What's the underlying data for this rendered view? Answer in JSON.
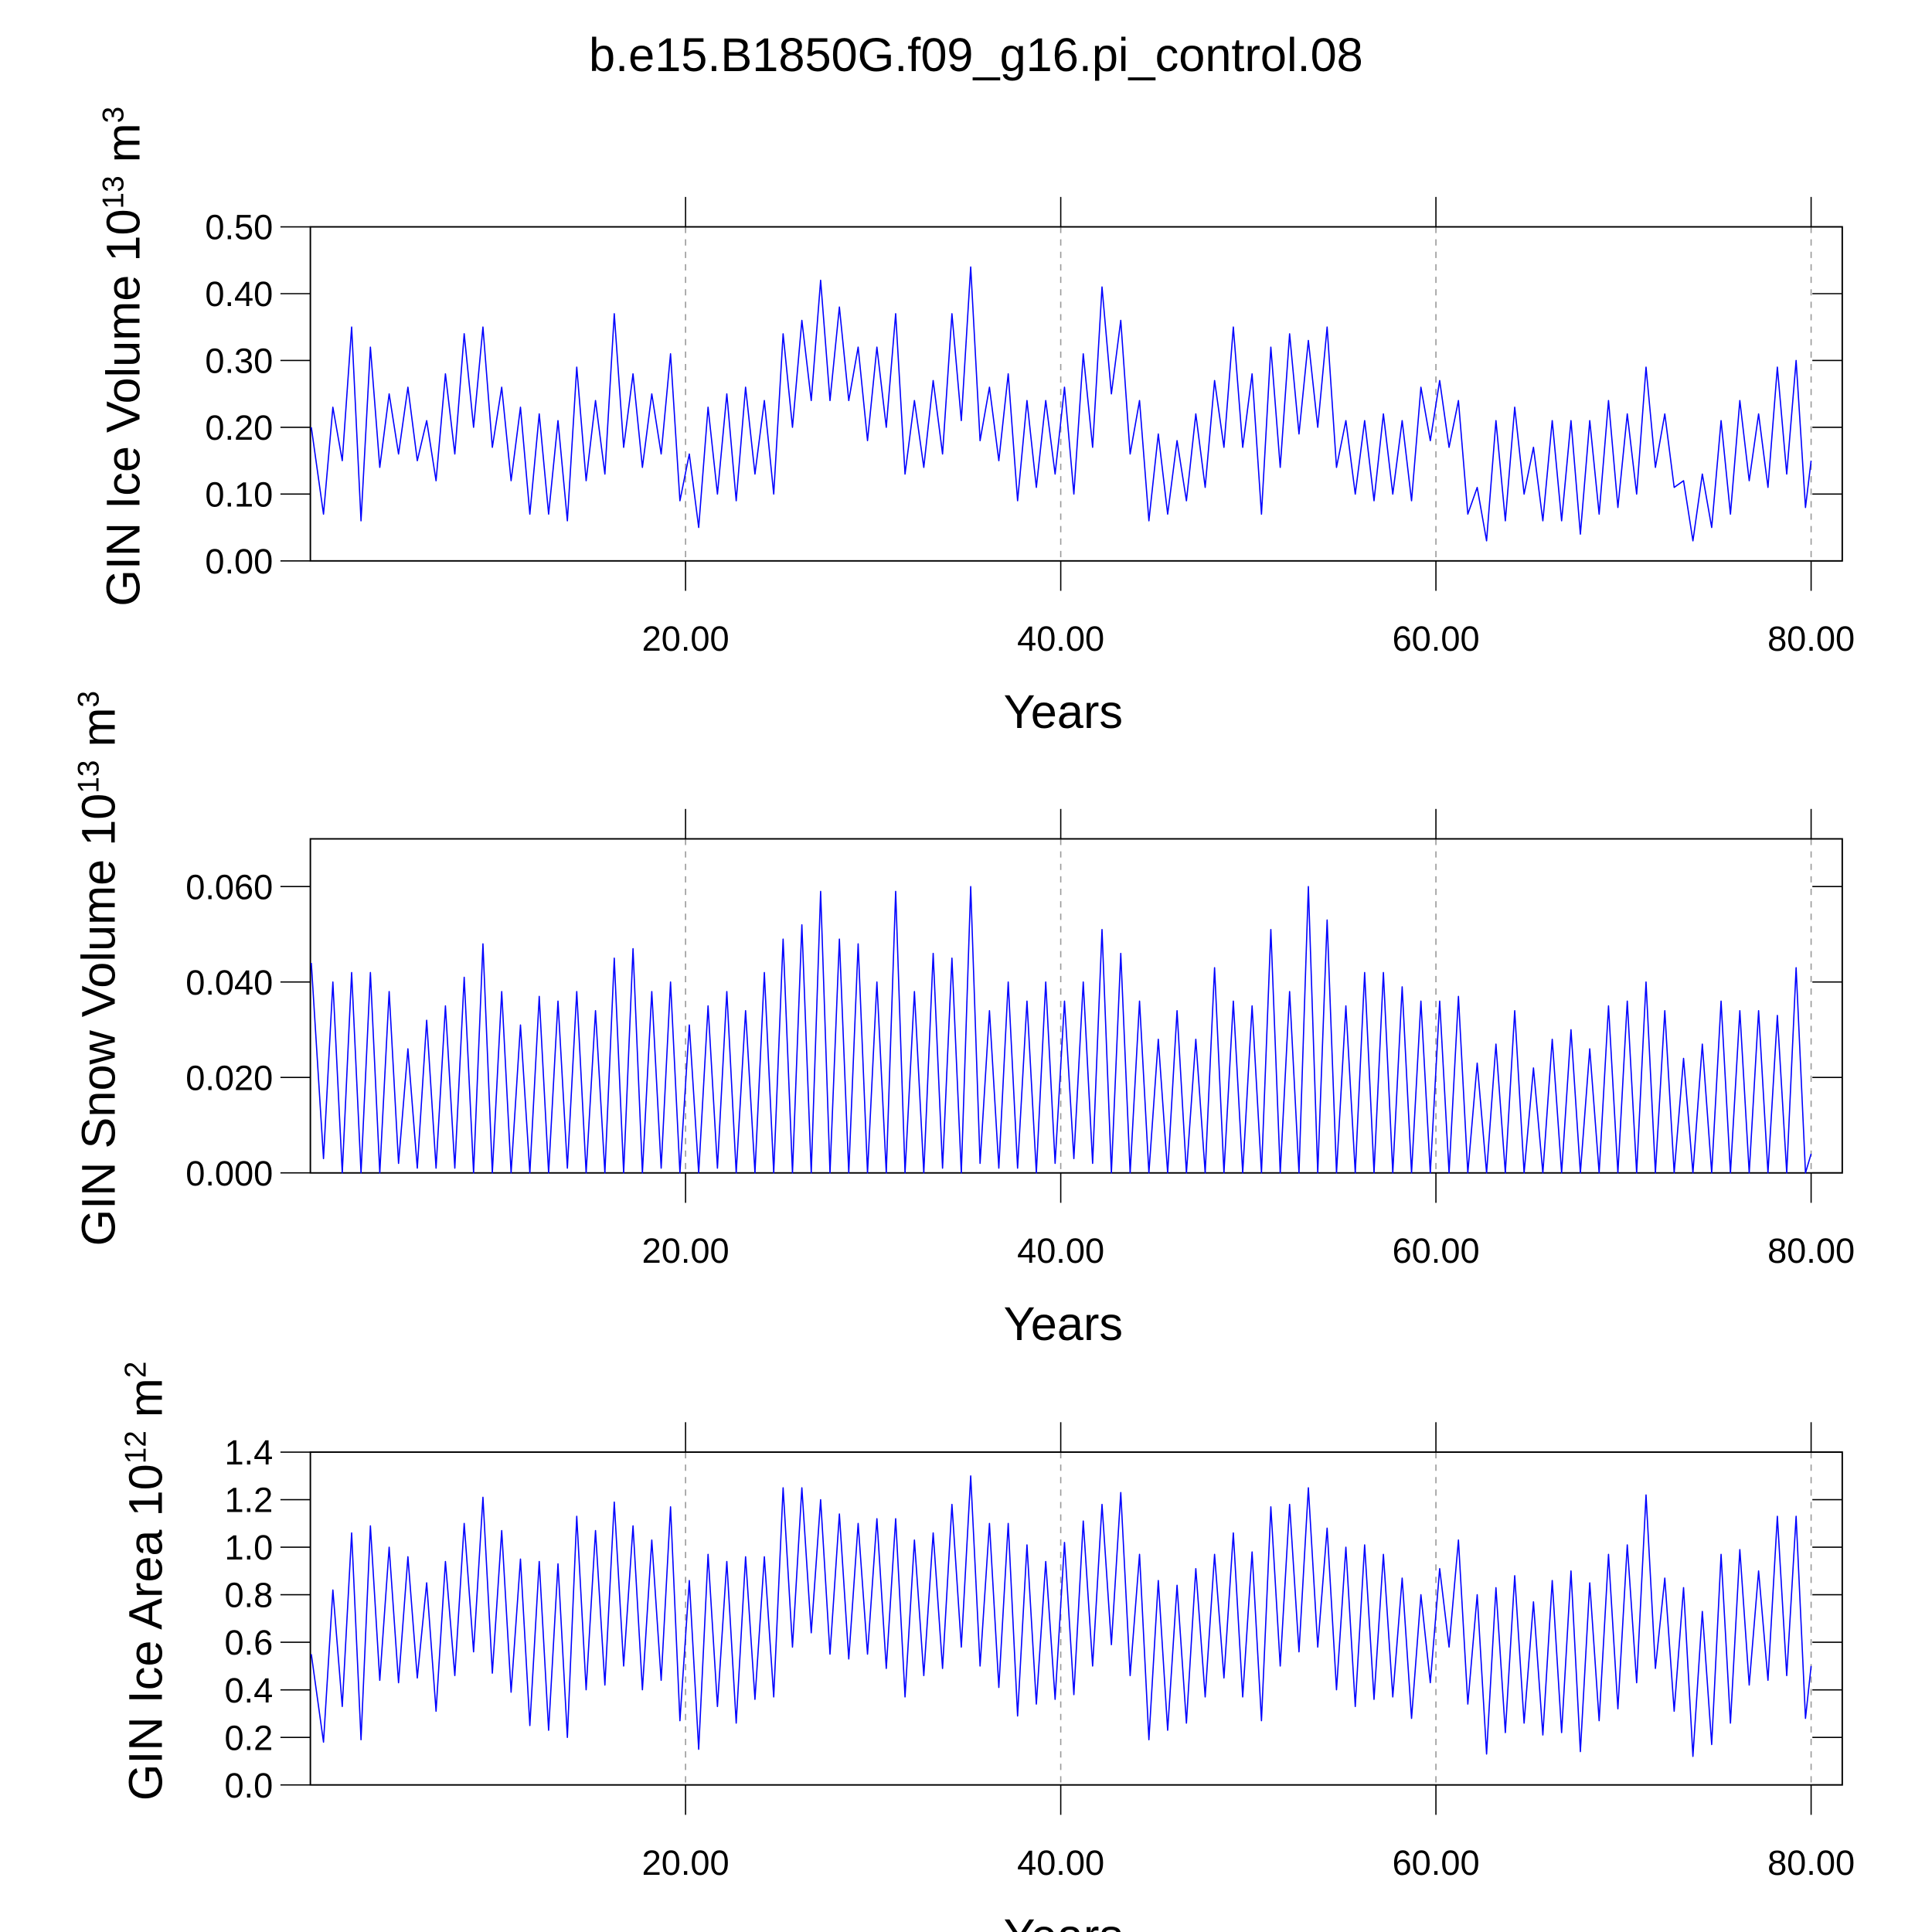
{
  "chart_data": [
    {
      "type": "line",
      "title": "b.e15.B1850G.f09_g16.pi_control.08",
      "xlabel": "Years",
      "ylabel": [
        {
          "text": "GIN Ice Volume 10"
        },
        {
          "text": "13",
          "sup": true
        },
        {
          "text": " m"
        },
        {
          "text": "3",
          "sup": true
        }
      ],
      "xlim": [
        0,
        81.66
      ],
      "xticks": [
        {
          "value": 20,
          "label": "20.00"
        },
        {
          "value": 40,
          "label": "40.00"
        },
        {
          "value": 60,
          "label": "60.00"
        },
        {
          "value": 80,
          "label": "80.00"
        }
      ],
      "ylim": [
        0,
        0.5
      ],
      "yticks": [
        {
          "value": 0,
          "label": "0.00"
        },
        {
          "value": 0.1,
          "label": "0.10"
        },
        {
          "value": 0.2,
          "label": "0.20"
        },
        {
          "value": 0.3,
          "label": "0.30"
        },
        {
          "value": 0.4,
          "label": "0.40"
        },
        {
          "value": 0.5,
          "label": "0.50"
        }
      ],
      "grid": "x",
      "x": [
        0.05,
        0.7,
        1.2,
        1.7,
        2.2,
        2.7,
        3.2,
        3.7,
        4.2,
        4.7,
        5.2,
        5.7,
        6.2,
        6.7,
        7.2,
        7.7,
        8.2,
        8.7,
        9.2,
        9.7,
        10.2,
        10.7,
        11.2,
        11.7,
        12.2,
        12.7,
        13.2,
        13.7,
        14.2,
        14.7,
        15.2,
        15.7,
        16.2,
        16.7,
        17.2,
        17.7,
        18.2,
        18.7,
        19.2,
        19.7,
        20.2,
        20.7,
        21.2,
        21.7,
        22.2,
        22.7,
        23.2,
        23.7,
        24.2,
        24.7,
        25.2,
        25.7,
        26.2,
        26.7,
        27.2,
        27.7,
        28.2,
        28.7,
        29.2,
        29.7,
        30.2,
        30.7,
        31.2,
        31.7,
        32.2,
        32.7,
        33.2,
        33.7,
        34.2,
        34.7,
        35.2,
        35.7,
        36.2,
        36.7,
        37.2,
        37.7,
        38.2,
        38.7,
        39.2,
        39.7,
        40.2,
        40.7,
        41.2,
        41.7,
        42.2,
        42.7,
        43.2,
        43.7,
        44.2,
        44.7,
        45.2,
        45.7,
        46.2,
        46.7,
        47.2,
        47.7,
        48.2,
        48.7,
        49.2,
        49.7,
        50.2,
        50.7,
        51.2,
        51.7,
        52.2,
        52.7,
        53.2,
        53.7,
        54.2,
        54.7,
        55.2,
        55.7,
        56.2,
        56.7,
        57.2,
        57.7,
        58.2,
        58.7,
        59.2,
        59.7,
        60.2,
        60.7,
        61.2,
        61.7,
        62.2,
        62.7,
        63.2,
        63.7,
        64.2,
        64.7,
        65.2,
        65.7,
        66.2,
        66.7,
        67.2,
        67.7,
        68.2,
        68.7,
        69.2,
        69.7,
        70.2,
        70.7,
        71.2,
        71.7,
        72.2,
        72.7,
        73.2,
        73.7,
        74.2,
        74.7,
        75.2,
        75.7,
        76.2,
        76.7,
        77.2,
        77.7,
        78.2,
        78.7,
        79.2,
        79.7,
        80.0
      ],
      "series": [
        {
          "color": "#0000ff",
          "values": [
            0.2,
            0.07,
            0.23,
            0.15,
            0.35,
            0.06,
            0.32,
            0.14,
            0.25,
            0.16,
            0.26,
            0.15,
            0.21,
            0.12,
            0.28,
            0.16,
            0.34,
            0.2,
            0.35,
            0.17,
            0.26,
            0.12,
            0.23,
            0.07,
            0.22,
            0.07,
            0.21,
            0.06,
            0.29,
            0.12,
            0.24,
            0.13,
            0.37,
            0.17,
            0.28,
            0.14,
            0.25,
            0.16,
            0.31,
            0.09,
            0.16,
            0.05,
            0.23,
            0.1,
            0.25,
            0.09,
            0.26,
            0.13,
            0.24,
            0.1,
            0.34,
            0.2,
            0.36,
            0.24,
            0.42,
            0.24,
            0.38,
            0.24,
            0.32,
            0.18,
            0.32,
            0.2,
            0.37,
            0.13,
            0.24,
            0.14,
            0.27,
            0.16,
            0.37,
            0.21,
            0.44,
            0.18,
            0.26,
            0.15,
            0.28,
            0.09,
            0.24,
            0.11,
            0.24,
            0.13,
            0.26,
            0.1,
            0.31,
            0.17,
            0.41,
            0.25,
            0.36,
            0.16,
            0.24,
            0.06,
            0.19,
            0.07,
            0.18,
            0.09,
            0.22,
            0.11,
            0.27,
            0.17,
            0.35,
            0.17,
            0.28,
            0.07,
            0.32,
            0.14,
            0.34,
            0.19,
            0.33,
            0.2,
            0.35,
            0.14,
            0.21,
            0.1,
            0.21,
            0.09,
            0.22,
            0.1,
            0.21,
            0.09,
            0.26,
            0.18,
            0.27,
            0.17,
            0.24,
            0.07,
            0.11,
            0.03,
            0.21,
            0.06,
            0.23,
            0.1,
            0.17,
            0.06,
            0.21,
            0.06,
            0.21,
            0.04,
            0.21,
            0.07,
            0.24,
            0.08,
            0.22,
            0.1,
            0.29,
            0.14,
            0.22,
            0.11,
            0.12,
            0.03,
            0.13,
            0.05,
            0.21,
            0.07,
            0.24,
            0.12,
            0.22,
            0.11,
            0.29,
            0.13,
            0.3,
            0.08,
            0.15
          ]
        }
      ]
    },
    {
      "type": "line",
      "xlabel": "Years",
      "ylabel": [
        {
          "text": "GIN Snow Volume 10"
        },
        {
          "text": "13",
          "sup": true
        },
        {
          "text": " m"
        },
        {
          "text": "3",
          "sup": true
        }
      ],
      "xlim": [
        0,
        81.66
      ],
      "xticks": [
        {
          "value": 20,
          "label": "20.00"
        },
        {
          "value": 40,
          "label": "40.00"
        },
        {
          "value": 60,
          "label": "60.00"
        },
        {
          "value": 80,
          "label": "80.00"
        }
      ],
      "ylim": [
        0,
        0.07
      ],
      "yticks": [
        {
          "value": 0,
          "label": "0.000"
        },
        {
          "value": 0.02,
          "label": "0.020"
        },
        {
          "value": 0.04,
          "label": "0.040"
        },
        {
          "value": 0.06,
          "label": "0.060"
        }
      ],
      "grid": "x",
      "x": [
        0.05,
        0.7,
        1.2,
        1.7,
        2.2,
        2.7,
        3.2,
        3.7,
        4.2,
        4.7,
        5.2,
        5.7,
        6.2,
        6.7,
        7.2,
        7.7,
        8.2,
        8.7,
        9.2,
        9.7,
        10.2,
        10.7,
        11.2,
        11.7,
        12.2,
        12.7,
        13.2,
        13.7,
        14.2,
        14.7,
        15.2,
        15.7,
        16.2,
        16.7,
        17.2,
        17.7,
        18.2,
        18.7,
        19.2,
        19.7,
        20.2,
        20.7,
        21.2,
        21.7,
        22.2,
        22.7,
        23.2,
        23.7,
        24.2,
        24.7,
        25.2,
        25.7,
        26.2,
        26.7,
        27.2,
        27.7,
        28.2,
        28.7,
        29.2,
        29.7,
        30.2,
        30.7,
        31.2,
        31.7,
        32.2,
        32.7,
        33.2,
        33.7,
        34.2,
        34.7,
        35.2,
        35.7,
        36.2,
        36.7,
        37.2,
        37.7,
        38.2,
        38.7,
        39.2,
        39.7,
        40.2,
        40.7,
        41.2,
        41.7,
        42.2,
        42.7,
        43.2,
        43.7,
        44.2,
        44.7,
        45.2,
        45.7,
        46.2,
        46.7,
        47.2,
        47.7,
        48.2,
        48.7,
        49.2,
        49.7,
        50.2,
        50.7,
        51.2,
        51.7,
        52.2,
        52.7,
        53.2,
        53.7,
        54.2,
        54.7,
        55.2,
        55.7,
        56.2,
        56.7,
        57.2,
        57.7,
        58.2,
        58.7,
        59.2,
        59.7,
        60.2,
        60.7,
        61.2,
        61.7,
        62.2,
        62.7,
        63.2,
        63.7,
        64.2,
        64.7,
        65.2,
        65.7,
        66.2,
        66.7,
        67.2,
        67.7,
        68.2,
        68.7,
        69.2,
        69.7,
        70.2,
        70.7,
        71.2,
        71.7,
        72.2,
        72.7,
        73.2,
        73.7,
        74.2,
        74.7,
        75.2,
        75.7,
        76.2,
        76.7,
        77.2,
        77.7,
        78.2,
        78.7,
        79.2,
        79.7,
        80.0
      ],
      "series": [
        {
          "color": "#0000ff",
          "values": [
            0.044,
            0.003,
            0.04,
            0.0,
            0.042,
            0.0,
            0.042,
            0.0,
            0.038,
            0.002,
            0.026,
            0.001,
            0.032,
            0.001,
            0.035,
            0.001,
            0.041,
            0.0,
            0.048,
            0.0,
            0.038,
            0.0,
            0.031,
            0.0,
            0.037,
            0.0,
            0.036,
            0.001,
            0.038,
            0.0,
            0.034,
            0.0,
            0.045,
            0.0,
            0.047,
            0.0,
            0.038,
            0.001,
            0.04,
            0.0,
            0.031,
            0.0,
            0.035,
            0.001,
            0.038,
            0.0,
            0.034,
            0.0,
            0.042,
            0.0,
            0.049,
            0.0,
            0.052,
            0.0,
            0.059,
            0.0,
            0.049,
            0.0,
            0.048,
            0.0,
            0.04,
            0.0,
            0.059,
            0.0,
            0.038,
            0.0,
            0.046,
            0.001,
            0.045,
            0.0,
            0.06,
            0.002,
            0.034,
            0.001,
            0.04,
            0.001,
            0.036,
            0.0,
            0.04,
            0.002,
            0.036,
            0.003,
            0.04,
            0.002,
            0.051,
            0.0,
            0.046,
            0.0,
            0.036,
            0.0,
            0.028,
            0.0,
            0.034,
            0.0,
            0.028,
            0.0,
            0.043,
            0.0,
            0.036,
            0.0,
            0.035,
            0.0,
            0.051,
            0.0,
            0.038,
            0.0,
            0.06,
            0.0,
            0.053,
            0.0,
            0.035,
            0.0,
            0.042,
            0.0,
            0.042,
            0.0,
            0.039,
            0.0,
            0.036,
            0.0,
            0.036,
            0.0,
            0.037,
            0.0,
            0.023,
            0.0,
            0.027,
            0.0,
            0.034,
            0.0,
            0.022,
            0.0,
            0.028,
            0.0,
            0.03,
            0.0,
            0.026,
            0.0,
            0.035,
            0.0,
            0.036,
            0.0,
            0.04,
            0.0,
            0.034,
            0.0,
            0.024,
            0.0,
            0.027,
            0.0,
            0.036,
            0.0,
            0.034,
            0.0,
            0.034,
            0.0,
            0.033,
            0.0,
            0.043,
            0.0,
            0.004
          ]
        }
      ]
    },
    {
      "type": "line",
      "xlabel": "Years",
      "ylabel": [
        {
          "text": "GIN Ice Area 10"
        },
        {
          "text": "12",
          "sup": true
        },
        {
          "text": " m"
        },
        {
          "text": "2",
          "sup": true
        }
      ],
      "xlim": [
        0,
        81.66
      ],
      "xticks": [
        {
          "value": 20,
          "label": "20.00"
        },
        {
          "value": 40,
          "label": "40.00"
        },
        {
          "value": 60,
          "label": "60.00"
        },
        {
          "value": 80,
          "label": "80.00"
        }
      ],
      "ylim": [
        0,
        1.4
      ],
      "yticks": [
        {
          "value": 0,
          "label": "0.0"
        },
        0.2,
        0.4,
        0.6,
        0.8,
        {
          "value": 1,
          "label": "1.0"
        },
        1.2,
        1.4
      ],
      "grid": "x",
      "x": [
        0.05,
        0.7,
        1.2,
        1.7,
        2.2,
        2.7,
        3.2,
        3.7,
        4.2,
        4.7,
        5.2,
        5.7,
        6.2,
        6.7,
        7.2,
        7.7,
        8.2,
        8.7,
        9.2,
        9.7,
        10.2,
        10.7,
        11.2,
        11.7,
        12.2,
        12.7,
        13.2,
        13.7,
        14.2,
        14.7,
        15.2,
        15.7,
        16.2,
        16.7,
        17.2,
        17.7,
        18.2,
        18.7,
        19.2,
        19.7,
        20.2,
        20.7,
        21.2,
        21.7,
        22.2,
        22.7,
        23.2,
        23.7,
        24.2,
        24.7,
        25.2,
        25.7,
        26.2,
        26.7,
        27.2,
        27.7,
        28.2,
        28.7,
        29.2,
        29.7,
        30.2,
        30.7,
        31.2,
        31.7,
        32.2,
        32.7,
        33.2,
        33.7,
        34.2,
        34.7,
        35.2,
        35.7,
        36.2,
        36.7,
        37.2,
        37.7,
        38.2,
        38.7,
        39.2,
        39.7,
        40.2,
        40.7,
        41.2,
        41.7,
        42.2,
        42.7,
        43.2,
        43.7,
        44.2,
        44.7,
        45.2,
        45.7,
        46.2,
        46.7,
        47.2,
        47.7,
        48.2,
        48.7,
        49.2,
        49.7,
        50.2,
        50.7,
        51.2,
        51.7,
        52.2,
        52.7,
        53.2,
        53.7,
        54.2,
        54.7,
        55.2,
        55.7,
        56.2,
        56.7,
        57.2,
        57.7,
        58.2,
        58.7,
        59.2,
        59.7,
        60.2,
        60.7,
        61.2,
        61.7,
        62.2,
        62.7,
        63.2,
        63.7,
        64.2,
        64.7,
        65.2,
        65.7,
        66.2,
        66.7,
        67.2,
        67.7,
        68.2,
        68.7,
        69.2,
        69.7,
        70.2,
        70.7,
        71.2,
        71.7,
        72.2,
        72.7,
        73.2,
        73.7,
        74.2,
        74.7,
        75.2,
        75.7,
        76.2,
        76.7,
        77.2,
        77.7,
        78.2,
        78.7,
        79.2,
        79.7,
        80.0
      ],
      "series": [
        {
          "color": "#0000ff",
          "values": [
            0.55,
            0.18,
            0.82,
            0.33,
            1.06,
            0.19,
            1.09,
            0.44,
            1.0,
            0.43,
            0.96,
            0.45,
            0.85,
            0.31,
            0.94,
            0.46,
            1.1,
            0.56,
            1.21,
            0.47,
            1.07,
            0.39,
            0.95,
            0.25,
            0.94,
            0.23,
            0.93,
            0.2,
            1.13,
            0.4,
            1.07,
            0.42,
            1.19,
            0.5,
            1.09,
            0.4,
            1.03,
            0.44,
            1.17,
            0.27,
            0.86,
            0.15,
            0.97,
            0.33,
            0.94,
            0.26,
            0.96,
            0.36,
            0.96,
            0.37,
            1.25,
            0.58,
            1.25,
            0.64,
            1.2,
            0.55,
            1.14,
            0.53,
            1.1,
            0.55,
            1.12,
            0.49,
            1.12,
            0.37,
            1.03,
            0.46,
            1.06,
            0.49,
            1.18,
            0.58,
            1.3,
            0.5,
            1.1,
            0.41,
            1.1,
            0.29,
            1.01,
            0.34,
            0.94,
            0.36,
            1.02,
            0.38,
            1.11,
            0.5,
            1.18,
            0.59,
            1.23,
            0.46,
            0.97,
            0.19,
            0.86,
            0.23,
            0.84,
            0.26,
            0.91,
            0.37,
            0.97,
            0.45,
            1.06,
            0.37,
            0.98,
            0.27,
            1.17,
            0.5,
            1.18,
            0.56,
            1.25,
            0.58,
            1.08,
            0.4,
            1.0,
            0.33,
            1.01,
            0.36,
            0.97,
            0.37,
            0.87,
            0.28,
            0.8,
            0.43,
            0.91,
            0.58,
            1.03,
            0.34,
            0.8,
            0.13,
            0.83,
            0.22,
            0.88,
            0.26,
            0.77,
            0.21,
            0.86,
            0.22,
            0.9,
            0.14,
            0.85,
            0.27,
            0.97,
            0.32,
            1.01,
            0.43,
            1.22,
            0.49,
            0.87,
            0.31,
            0.83,
            0.12,
            0.73,
            0.17,
            0.97,
            0.26,
            0.99,
            0.42,
            0.9,
            0.44,
            1.13,
            0.46,
            1.13,
            0.28,
            0.5
          ]
        }
      ]
    }
  ]
}
